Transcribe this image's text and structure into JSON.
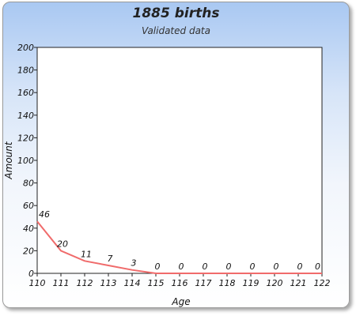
{
  "chart_data": {
    "type": "line",
    "title": "1885 births",
    "subtitle": "Validated data",
    "xlabel": "Age",
    "ylabel": "Amount",
    "ylim": [
      0,
      200
    ],
    "yticks": [
      0,
      20,
      40,
      60,
      80,
      100,
      120,
      140,
      160,
      180,
      200
    ],
    "categories": [
      "110",
      "111",
      "112",
      "113",
      "114",
      "115",
      "116",
      "117",
      "118",
      "119",
      "120",
      "121",
      "122"
    ],
    "series": [
      {
        "values": [
          46,
          20,
          11,
          7,
          3,
          0,
          0,
          0,
          0,
          0,
          0,
          0,
          0
        ]
      }
    ],
    "grid": false,
    "line_color": "#f06b6b"
  }
}
